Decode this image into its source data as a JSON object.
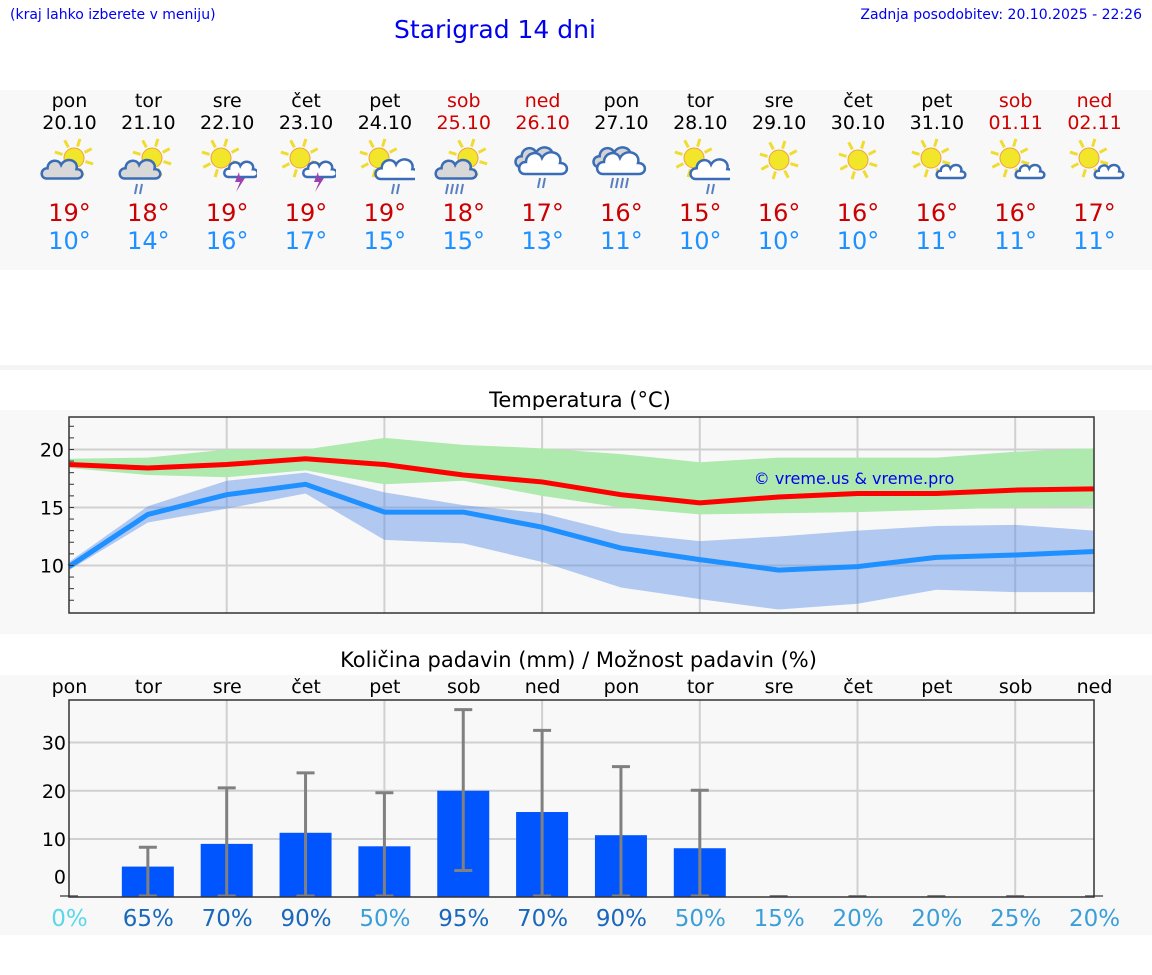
{
  "header": {
    "note": "(kraj lahko izberete v meniju)",
    "title": "Starigrad 14 dni",
    "updated": "Zadnja posodobitev: 20.10.2025 - 22:26"
  },
  "days": [
    {
      "name": "pon",
      "date": "20.10",
      "weekend": false,
      "icon": "sun-cloud",
      "max": "19°",
      "min": "10°"
    },
    {
      "name": "tor",
      "date": "21.10",
      "weekend": false,
      "icon": "sun-cloud-light-rain",
      "max": "18°",
      "min": "14°"
    },
    {
      "name": "sre",
      "date": "22.10",
      "weekend": false,
      "icon": "sun-thunder",
      "max": "19°",
      "min": "16°"
    },
    {
      "name": "čet",
      "date": "23.10",
      "weekend": false,
      "icon": "sun-thunder",
      "max": "19°",
      "min": "17°"
    },
    {
      "name": "pet",
      "date": "24.10",
      "weekend": false,
      "icon": "sun-cloud-rain",
      "max": "19°",
      "min": "15°"
    },
    {
      "name": "sob",
      "date": "25.10",
      "weekend": true,
      "icon": "sun-cloud-heavy-rain",
      "max": "18°",
      "min": "15°"
    },
    {
      "name": "ned",
      "date": "26.10",
      "weekend": true,
      "icon": "cloud-rain",
      "max": "17°",
      "min": "13°"
    },
    {
      "name": "pon",
      "date": "27.10",
      "weekend": false,
      "icon": "cloud-heavy-rain",
      "max": "16°",
      "min": "11°"
    },
    {
      "name": "tor",
      "date": "28.10",
      "weekend": false,
      "icon": "sun-cloud-rain",
      "max": "15°",
      "min": "10°"
    },
    {
      "name": "sre",
      "date": "29.10",
      "weekend": false,
      "icon": "sun",
      "max": "16°",
      "min": "10°"
    },
    {
      "name": "čet",
      "date": "30.10",
      "weekend": false,
      "icon": "sun",
      "max": "16°",
      "min": "10°"
    },
    {
      "name": "pet",
      "date": "31.10",
      "weekend": false,
      "icon": "sun-small-cloud",
      "max": "16°",
      "min": "11°"
    },
    {
      "name": "sob",
      "date": "01.11",
      "weekend": true,
      "icon": "sun-small-cloud",
      "max": "16°",
      "min": "11°"
    },
    {
      "name": "ned",
      "date": "02.11",
      "weekend": true,
      "icon": "sun-small-cloud",
      "max": "17°",
      "min": "11°"
    }
  ],
  "colors": {
    "max": "#ff0000",
    "min": "#1e90ff",
    "max_band": "#aee9ad",
    "min_band": "#adc8f2",
    "overlap": "#7ec8a8",
    "bar": "#0055ff",
    "whisker": "#808080"
  },
  "chart_data": [
    {
      "type": "line",
      "title": "Temperatura (°C)",
      "ylim": [
        5.9,
        22.8
      ],
      "yticks": [
        10,
        15,
        20
      ],
      "grid": true,
      "watermark": "© vreme.us & vreme.pro",
      "series": [
        {
          "name": "max",
          "values": [
            18.7,
            18.4,
            18.7,
            19.2,
            18.7,
            17.8,
            17.2,
            16.1,
            15.4,
            15.9,
            16.2,
            16.2,
            16.5,
            16.6
          ]
        },
        {
          "name": "min",
          "values": [
            9.9,
            14.4,
            16.1,
            17.0,
            14.6,
            14.6,
            13.3,
            11.5,
            10.5,
            9.6,
            9.9,
            10.7,
            10.9,
            11.2
          ]
        }
      ],
      "bands": [
        {
          "name": "max-range",
          "upper": [
            19.2,
            19.3,
            20.0,
            20.0,
            21.0,
            20.4,
            20.1,
            19.6,
            18.9,
            19.3,
            19.3,
            19.3,
            19.8,
            20.1
          ],
          "lower": [
            18.4,
            17.8,
            17.6,
            18.2,
            17.0,
            17.3,
            16.0,
            15.0,
            14.4,
            14.5,
            14.6,
            14.8,
            15.0,
            15.1
          ]
        },
        {
          "name": "min-range",
          "upper": [
            10.3,
            15.1,
            17.3,
            18.0,
            16.3,
            15.2,
            14.5,
            12.8,
            12.1,
            12.5,
            13.0,
            13.4,
            13.5,
            13.0
          ],
          "lower": [
            9.6,
            13.7,
            14.9,
            16.2,
            12.2,
            11.9,
            10.3,
            8.1,
            7.1,
            6.2,
            6.7,
            7.9,
            7.7,
            7.7
          ]
        }
      ]
    },
    {
      "type": "bar",
      "title": "Količina padavin (mm) / Možnost padavin (%)",
      "categories": [
        "pon",
        "tor",
        "sre",
        "čet",
        "pet",
        "sob",
        "ned",
        "pon",
        "tor",
        "sre",
        "čet",
        "pet",
        "sob",
        "ned"
      ],
      "ylim": [
        -2,
        38.8
      ],
      "yticks": [
        0,
        10,
        20,
        30
      ],
      "values": [
        0,
        4.3,
        9.0,
        11.3,
        8.5,
        20.0,
        15.6,
        10.8,
        8.1,
        0,
        0,
        0,
        0,
        0
      ],
      "err_low": [
        0,
        0,
        0,
        0,
        0,
        3.5,
        0,
        0,
        0,
        0,
        0,
        0,
        0,
        0
      ],
      "err_high": [
        0,
        8.3,
        20.6,
        23.7,
        19.6,
        36.8,
        32.5,
        25.0,
        20.1,
        0,
        0,
        0,
        0,
        0
      ],
      "probability": [
        "0%",
        "65%",
        "70%",
        "90%",
        "50%",
        "95%",
        "70%",
        "90%",
        "50%",
        "15%",
        "20%",
        "20%",
        "25%",
        "20%"
      ],
      "probability_values": [
        0,
        65,
        70,
        90,
        50,
        95,
        70,
        90,
        50,
        15,
        20,
        20,
        25,
        20
      ]
    }
  ]
}
